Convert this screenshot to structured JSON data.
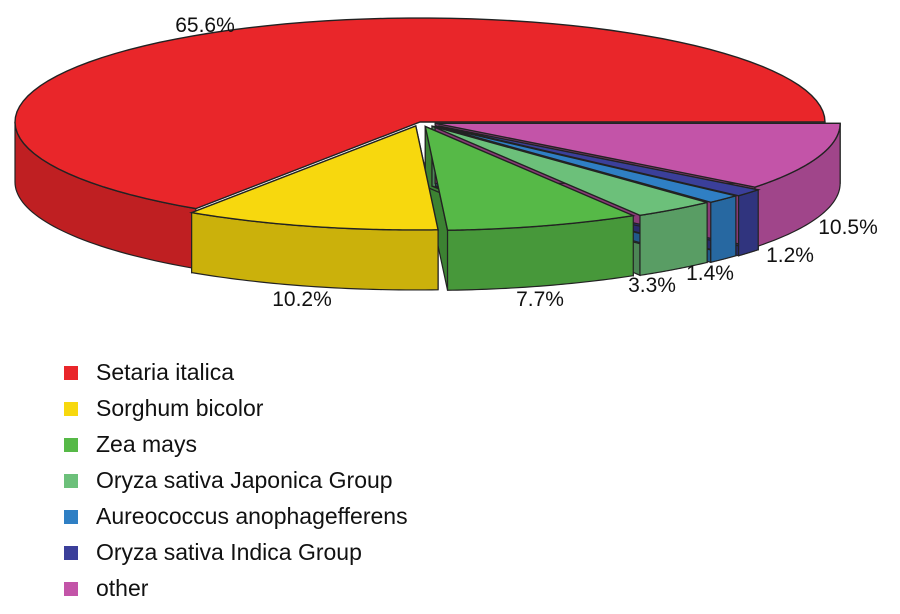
{
  "chart_data": {
    "type": "pie",
    "style": "3d-exploded",
    "title": "",
    "slices": [
      {
        "name": "Setaria italica",
        "value": 65.6,
        "label": "65.6%",
        "color": "#e9262a"
      },
      {
        "name": "Sorghum bicolor",
        "value": 10.2,
        "label": "10.2%",
        "color": "#f7d80e"
      },
      {
        "name": "Zea mays",
        "value": 7.7,
        "label": "7.7%",
        "color": "#56b947"
      },
      {
        "name": "Oryza sativa Japonica Group",
        "value": 3.3,
        "label": "3.3%",
        "color": "#6cc07a"
      },
      {
        "name": "Aureococcus anophagefferens",
        "value": 1.4,
        "label": "1.4%",
        "color": "#2f7fc4"
      },
      {
        "name": "Oryza sativa Indica Group",
        "value": 1.2,
        "label": "1.2%",
        "color": "#3b3f9a"
      },
      {
        "name": "other",
        "value": 10.5,
        "label": "10.5%",
        "color": "#c354a8"
      }
    ],
    "legend_position": "bottom-left"
  }
}
